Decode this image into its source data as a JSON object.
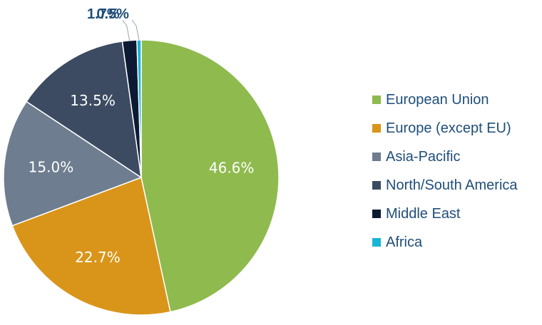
{
  "chart_data": {
    "type": "pie",
    "categories": [
      "European Union",
      "Europe (except EU)",
      "Asia-Pacific",
      "North/South America",
      "Middle East",
      "Africa"
    ],
    "values": [
      46.6,
      22.7,
      15.0,
      13.5,
      1.7,
      0.5
    ],
    "labels": [
      "46.6%",
      "22.7%",
      "15.0%",
      "13.5%",
      "1.7%",
      "0.5%"
    ],
    "colors": [
      "#8fba4e",
      "#d9951a",
      "#6e7d8f",
      "#3c4b62",
      "#0d1a33",
      "#1ab5d6"
    ],
    "label_color_outside": "#1f4e79",
    "title": "",
    "legend_position": "right",
    "start_angle_deg": 0,
    "direction": "clockwise"
  }
}
